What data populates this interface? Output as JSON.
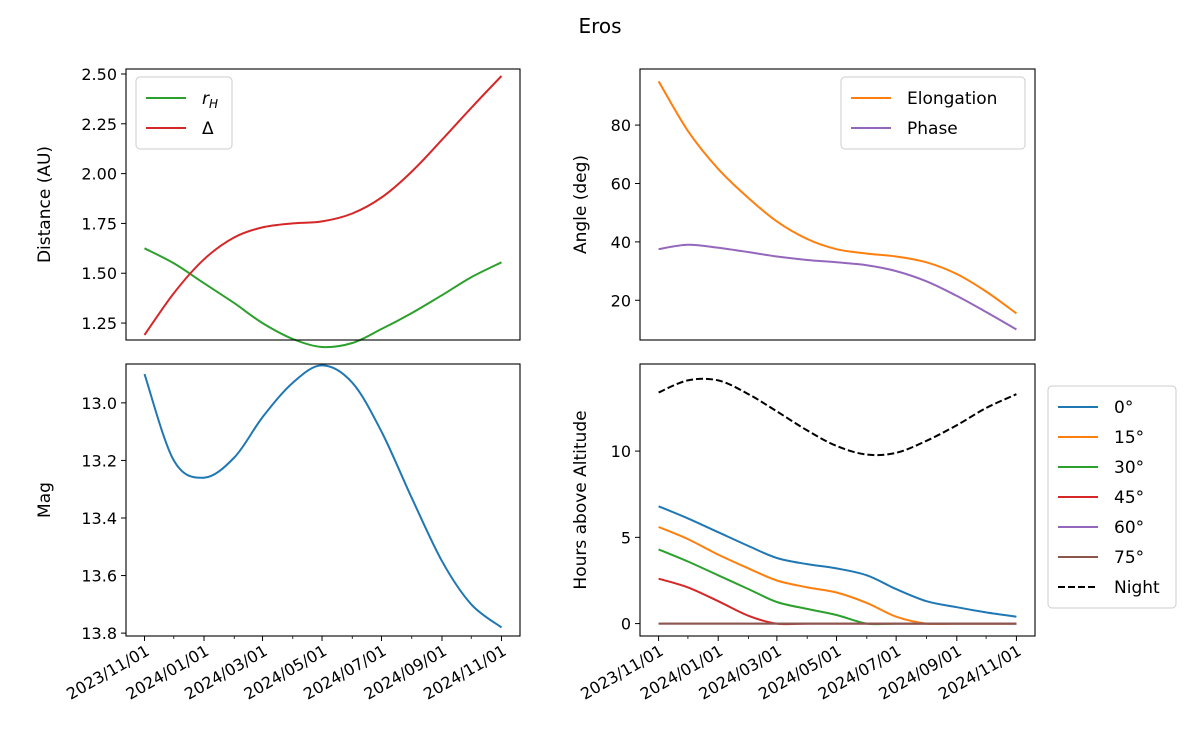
{
  "figure_title": "Eros",
  "chart_data": [
    {
      "id": "distance",
      "type": "line",
      "ylabel": "Distance (AU)",
      "ylim": [
        1.165,
        2.525
      ],
      "yticks": [
        1.25,
        1.5,
        1.75,
        2.0,
        2.25,
        2.5
      ],
      "ytick_labels": [
        "1.25",
        "1.50",
        "1.75",
        "2.00",
        "2.25",
        "2.50"
      ],
      "grid": false,
      "legend_position": "upper-left",
      "series": [
        {
          "name": "r_H",
          "color": "#2ca02c",
          "style": "solid",
          "x": [
            "2023-11-01",
            "2023-12-01",
            "2024-01-01",
            "2024-02-01",
            "2024-03-01",
            "2024-04-01",
            "2024-05-01",
            "2024-06-01",
            "2024-07-01",
            "2024-08-01",
            "2024-09-01",
            "2024-10-01",
            "2024-11-01"
          ],
          "y": [
            1.625,
            1.55,
            1.45,
            1.35,
            1.25,
            1.17,
            1.13,
            1.15,
            1.22,
            1.3,
            1.39,
            1.48,
            1.555
          ]
        },
        {
          "name": "Δ",
          "color": "#d62728",
          "style": "solid",
          "x": [
            "2023-11-01",
            "2023-12-01",
            "2024-01-01",
            "2024-02-01",
            "2024-03-01",
            "2024-04-01",
            "2024-05-01",
            "2024-06-01",
            "2024-07-01",
            "2024-08-01",
            "2024-09-01",
            "2024-10-01",
            "2024-11-01"
          ],
          "y": [
            1.19,
            1.4,
            1.57,
            1.68,
            1.73,
            1.75,
            1.76,
            1.8,
            1.88,
            2.01,
            2.17,
            2.33,
            2.49
          ]
        }
      ]
    },
    {
      "id": "angle",
      "type": "line",
      "ylabel": "Angle (deg)",
      "ylim": [
        6.4,
        99.2
      ],
      "yticks": [
        20,
        40,
        60,
        80
      ],
      "ytick_labels": [
        "20",
        "40",
        "60",
        "80"
      ],
      "grid": false,
      "legend_position": "upper-right",
      "series": [
        {
          "name": "Elongation",
          "color": "#ff7f0e",
          "style": "solid",
          "x": [
            "2023-11-01",
            "2023-12-01",
            "2024-01-01",
            "2024-02-01",
            "2024-03-01",
            "2024-04-01",
            "2024-05-01",
            "2024-06-01",
            "2024-07-01",
            "2024-08-01",
            "2024-09-01",
            "2024-10-01",
            "2024-11-01"
          ],
          "y": [
            95.0,
            78.0,
            65.0,
            55.0,
            47.0,
            41.0,
            37.5,
            36.0,
            35.0,
            33.0,
            29.0,
            23.0,
            15.5
          ]
        },
        {
          "name": "Phase",
          "color": "#9467bd",
          "style": "solid",
          "x": [
            "2023-11-01",
            "2023-12-01",
            "2024-01-01",
            "2024-02-01",
            "2024-03-01",
            "2024-04-01",
            "2024-05-01",
            "2024-06-01",
            "2024-07-01",
            "2024-08-01",
            "2024-09-01",
            "2024-10-01",
            "2024-11-01"
          ],
          "y": [
            37.5,
            39.0,
            38.0,
            36.5,
            35.0,
            33.8,
            33.0,
            32.0,
            30.0,
            26.5,
            21.5,
            16.0,
            10.0
          ]
        }
      ]
    },
    {
      "id": "magnitude",
      "type": "line",
      "ylabel": "Mag",
      "ylim": [
        13.81,
        12.865
      ],
      "inverted_y": true,
      "yticks": [
        13.0,
        13.2,
        13.4,
        13.6,
        13.8
      ],
      "ytick_labels": [
        "13.0",
        "13.2",
        "13.4",
        "13.6",
        "13.8"
      ],
      "grid": false,
      "series": [
        {
          "name": "",
          "color": "#1f77b4",
          "style": "solid",
          "x": [
            "2023-11-01",
            "2023-12-01",
            "2024-01-01",
            "2024-02-01",
            "2024-03-01",
            "2024-04-01",
            "2024-05-01",
            "2024-06-01",
            "2024-07-01",
            "2024-08-01",
            "2024-09-01",
            "2024-10-01",
            "2024-11-01"
          ],
          "y": [
            12.9,
            13.2,
            13.26,
            13.19,
            13.05,
            12.93,
            12.87,
            12.93,
            13.1,
            13.33,
            13.55,
            13.7,
            13.78
          ]
        }
      ]
    },
    {
      "id": "hours",
      "type": "line",
      "ylabel": "Hours above Altitude",
      "ylim": [
        -0.72,
        15.05
      ],
      "yticks": [
        0,
        5,
        10
      ],
      "ytick_labels": [
        "0",
        "5",
        "10"
      ],
      "grid": false,
      "legend_position": "outside-right",
      "series": [
        {
          "name": "0°",
          "color": "#1f77b4",
          "style": "solid",
          "x": [
            "2023-11-01",
            "2023-12-01",
            "2024-01-01",
            "2024-02-01",
            "2024-03-01",
            "2024-04-01",
            "2024-05-01",
            "2024-06-01",
            "2024-07-01",
            "2024-08-01",
            "2024-09-01",
            "2024-10-01",
            "2024-11-01"
          ],
          "y": [
            6.8,
            6.1,
            5.3,
            4.5,
            3.8,
            3.45,
            3.2,
            2.8,
            2.0,
            1.3,
            0.95,
            0.65,
            0.4
          ]
        },
        {
          "name": "15°",
          "color": "#ff7f0e",
          "style": "solid",
          "x": [
            "2023-11-01",
            "2023-12-01",
            "2024-01-01",
            "2024-02-01",
            "2024-03-01",
            "2024-04-01",
            "2024-05-01",
            "2024-06-01",
            "2024-07-01",
            "2024-08-01",
            "2024-09-01",
            "2024-10-01",
            "2024-11-01"
          ],
          "y": [
            5.6,
            4.9,
            4.0,
            3.2,
            2.5,
            2.1,
            1.8,
            1.2,
            0.4,
            0,
            0,
            0,
            0
          ]
        },
        {
          "name": "30°",
          "color": "#2ca02c",
          "style": "solid",
          "x": [
            "2023-11-01",
            "2023-12-01",
            "2024-01-01",
            "2024-02-01",
            "2024-03-01",
            "2024-04-01",
            "2024-05-01",
            "2024-06-01",
            "2024-07-01",
            "2024-08-01",
            "2024-09-01",
            "2024-10-01",
            "2024-11-01"
          ],
          "y": [
            4.3,
            3.6,
            2.8,
            2.0,
            1.25,
            0.85,
            0.5,
            0,
            0,
            0,
            0,
            0,
            0
          ]
        },
        {
          "name": "45°",
          "color": "#d62728",
          "style": "solid",
          "x": [
            "2023-11-01",
            "2023-12-01",
            "2024-01-01",
            "2024-02-01",
            "2024-03-01",
            "2024-04-01",
            "2024-05-01",
            "2024-06-01",
            "2024-07-01",
            "2024-08-01",
            "2024-09-01",
            "2024-10-01",
            "2024-11-01"
          ],
          "y": [
            2.6,
            2.1,
            1.3,
            0.45,
            0,
            0,
            0,
            0,
            0,
            0,
            0,
            0,
            0
          ]
        },
        {
          "name": "60°",
          "color": "#9467bd",
          "style": "solid",
          "x": [
            "2023-11-01",
            "2024-11-01"
          ],
          "y": [
            0,
            0
          ]
        },
        {
          "name": "75°",
          "color": "#8c564b",
          "style": "solid",
          "x": [
            "2023-11-01",
            "2024-11-01"
          ],
          "y": [
            0,
            0
          ]
        },
        {
          "name": "Night",
          "color": "#000000",
          "style": "dashed",
          "x": [
            "2023-11-01",
            "2023-12-01",
            "2024-01-01",
            "2024-02-01",
            "2024-03-01",
            "2024-04-01",
            "2024-05-01",
            "2024-06-01",
            "2024-07-01",
            "2024-08-01",
            "2024-09-01",
            "2024-10-01",
            "2024-11-01"
          ],
          "y": [
            13.4,
            14.1,
            14.1,
            13.3,
            12.3,
            11.2,
            10.3,
            9.8,
            9.9,
            10.6,
            11.5,
            12.5,
            13.3
          ]
        }
      ]
    }
  ],
  "x_axis": {
    "range": [
      "2023-10-13",
      "2024-11-20"
    ],
    "major_ticks": [
      "2023-11-01",
      "2024-01-01",
      "2024-03-01",
      "2024-05-01",
      "2024-07-01",
      "2024-09-01",
      "2024-11-01"
    ],
    "major_labels": [
      "2023/11/01",
      "2024/01/01",
      "2024/03/01",
      "2024/05/01",
      "2024/07/01",
      "2024/09/01",
      "2024/11/01"
    ],
    "minor_ticks": [
      "2023-12-01",
      "2024-02-01",
      "2024-04-01",
      "2024-06-01",
      "2024-08-01",
      "2024-10-01"
    ]
  }
}
